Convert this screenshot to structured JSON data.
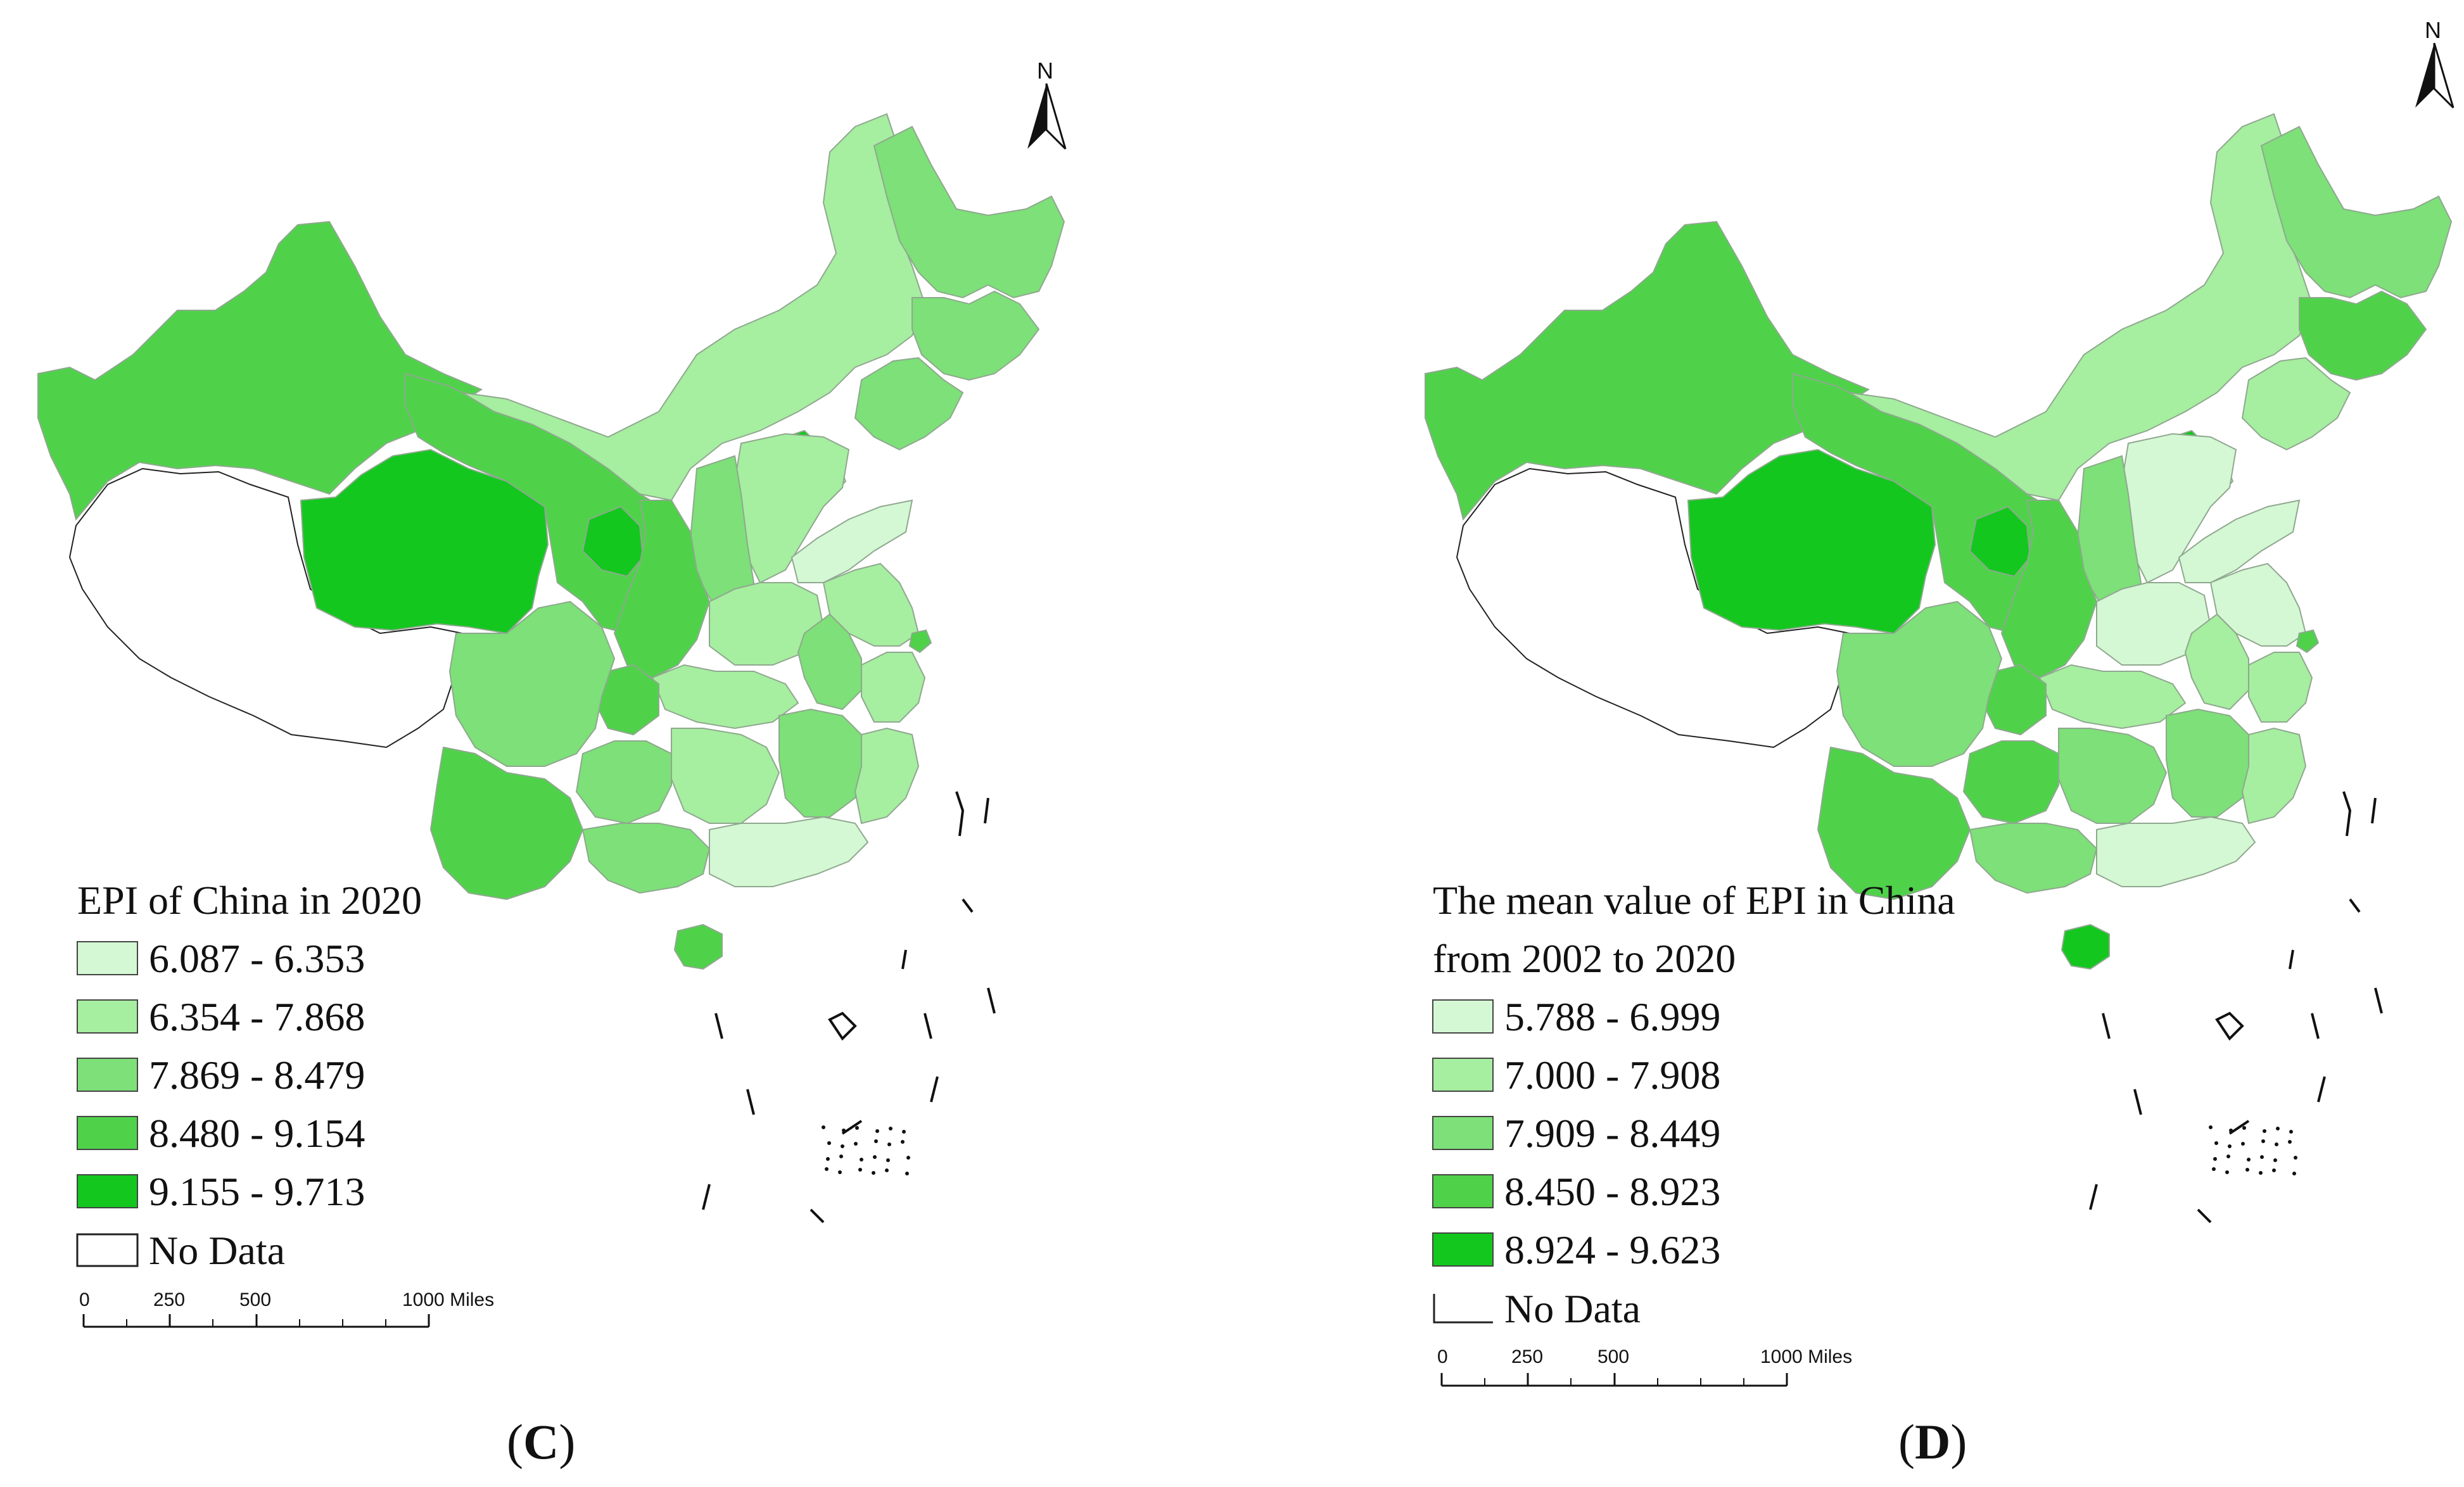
{
  "panels": [
    {
      "caption_open": "(",
      "caption_letter": "C",
      "caption_close": ")",
      "north_label": "N",
      "legend_title_lines": [
        "EPI of China in 2020"
      ],
      "legend_classes": [
        {
          "label": "6.087 - 6.353",
          "color": "#d4f7d4"
        },
        {
          "label": "6.354 - 7.868",
          "color": "#a6eea0"
        },
        {
          "label": "7.869 - 8.479",
          "color": "#7de078"
        },
        {
          "label": "8.480 - 9.154",
          "color": "#4fd24a"
        },
        {
          "label": "9.155 - 9.713",
          "color": "#13c71e"
        }
      ],
      "no_data_label": "No Data",
      "scale_labels": [
        "0",
        "250",
        "500",
        "1000 Miles"
      ]
    },
    {
      "caption_open": "(",
      "caption_letter": "D",
      "caption_close": ")",
      "north_label": "N",
      "legend_title_lines": [
        "The mean value of EPI in China",
        "from 2002 to 2020"
      ],
      "legend_classes": [
        {
          "label": "5.788 - 6.999",
          "color": "#d4f7d4"
        },
        {
          "label": "7.000 - 7.908",
          "color": "#a6eea0"
        },
        {
          "label": "7.909 - 8.449",
          "color": "#7de078"
        },
        {
          "label": "8.450 - 8.923",
          "color": "#4fd24a"
        },
        {
          "label": "8.924 - 9.623",
          "color": "#13c71e"
        }
      ],
      "no_data_label": "No Data",
      "scale_labels": [
        "0",
        "250",
        "500",
        "1000 Miles"
      ]
    }
  ],
  "regions": {
    "C": [
      {
        "name": "xinjiang",
        "class": 3
      },
      {
        "name": "tibet",
        "class": -1
      },
      {
        "name": "qinghai",
        "class": 4
      },
      {
        "name": "gansu",
        "class": 3
      },
      {
        "name": "ningxia",
        "class": 4
      },
      {
        "name": "inner-mongolia",
        "class": 1
      },
      {
        "name": "heilongjiang",
        "class": 2
      },
      {
        "name": "jilin",
        "class": 2
      },
      {
        "name": "liaoning",
        "class": 2
      },
      {
        "name": "beijing",
        "class": 4
      },
      {
        "name": "tianjin",
        "class": 0
      },
      {
        "name": "hebei",
        "class": 1
      },
      {
        "name": "shanxi",
        "class": 2
      },
      {
        "name": "shandong",
        "class": 0
      },
      {
        "name": "shaanxi",
        "class": 3
      },
      {
        "name": "henan",
        "class": 1
      },
      {
        "name": "jiangsu",
        "class": 1
      },
      {
        "name": "shanghai",
        "class": 3
      },
      {
        "name": "anhui",
        "class": 2
      },
      {
        "name": "zhejiang",
        "class": 1
      },
      {
        "name": "hubei",
        "class": 1
      },
      {
        "name": "chongqing",
        "class": 3
      },
      {
        "name": "sichuan",
        "class": 2
      },
      {
        "name": "hunan",
        "class": 1
      },
      {
        "name": "jiangxi",
        "class": 2
      },
      {
        "name": "fujian",
        "class": 1
      },
      {
        "name": "guizhou",
        "class": 2
      },
      {
        "name": "yunnan",
        "class": 3
      },
      {
        "name": "guangxi",
        "class": 2
      },
      {
        "name": "guangdong",
        "class": 0
      },
      {
        "name": "hainan",
        "class": 3
      }
    ],
    "D": [
      {
        "name": "xinjiang",
        "class": 3
      },
      {
        "name": "tibet",
        "class": -1
      },
      {
        "name": "qinghai",
        "class": 4
      },
      {
        "name": "gansu",
        "class": 3
      },
      {
        "name": "ningxia",
        "class": 4
      },
      {
        "name": "inner-mongolia",
        "class": 1
      },
      {
        "name": "heilongjiang",
        "class": 2
      },
      {
        "name": "jilin",
        "class": 3
      },
      {
        "name": "liaoning",
        "class": 1
      },
      {
        "name": "beijing",
        "class": 4
      },
      {
        "name": "tianjin",
        "class": 0
      },
      {
        "name": "hebei",
        "class": 0
      },
      {
        "name": "shanxi",
        "class": 2
      },
      {
        "name": "shandong",
        "class": 0
      },
      {
        "name": "shaanxi",
        "class": 3
      },
      {
        "name": "henan",
        "class": 0
      },
      {
        "name": "jiangsu",
        "class": 0
      },
      {
        "name": "shanghai",
        "class": 3
      },
      {
        "name": "anhui",
        "class": 1
      },
      {
        "name": "zhejiang",
        "class": 1
      },
      {
        "name": "hubei",
        "class": 1
      },
      {
        "name": "chongqing",
        "class": 3
      },
      {
        "name": "sichuan",
        "class": 2
      },
      {
        "name": "hunan",
        "class": 2
      },
      {
        "name": "jiangxi",
        "class": 2
      },
      {
        "name": "fujian",
        "class": 1
      },
      {
        "name": "guizhou",
        "class": 3
      },
      {
        "name": "yunnan",
        "class": 3
      },
      {
        "name": "guangxi",
        "class": 2
      },
      {
        "name": "guangdong",
        "class": 0
      },
      {
        "name": "hainan",
        "class": 4
      }
    ]
  }
}
